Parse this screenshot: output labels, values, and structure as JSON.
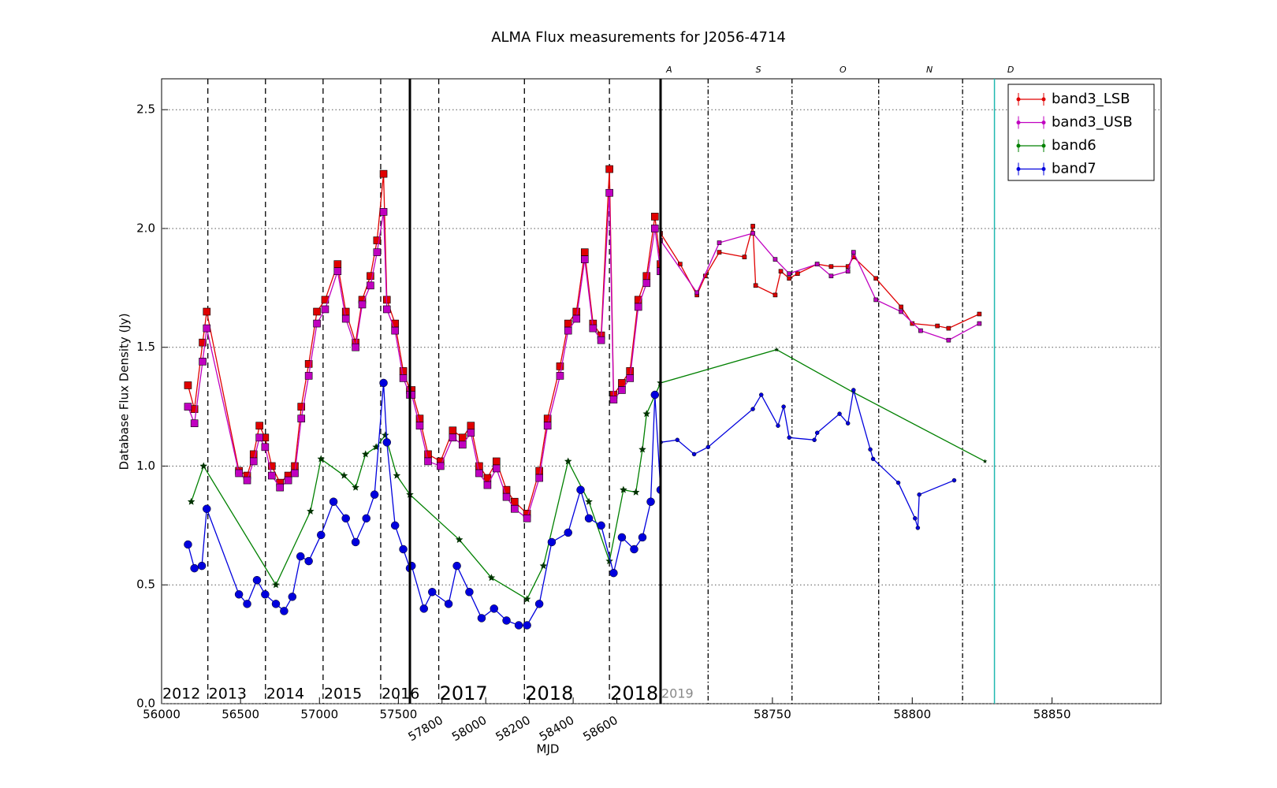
{
  "chart_data": [
    {
      "type": "line",
      "title": "ALMA Flux measurements for J2056-4714",
      "xlabel": "MJD",
      "ylabel": "Database Flux Density (Jy)",
      "xlim": [
        56000,
        57573
      ],
      "xticks": [
        56000,
        56500,
        57000,
        57500
      ],
      "ylim": [
        0,
        2.63
      ],
      "yticks": [
        {
          "value": 0,
          "label": "0.0"
        },
        0.5,
        {
          "value": 1,
          "label": "1.0"
        },
        1.5,
        {
          "value": 2,
          "label": "2.0"
        },
        2.5
      ],
      "grid": true,
      "vlines": [
        56293,
        56658,
        57023,
        57388
      ],
      "vline_style": "dashed",
      "annotations": [
        {
          "x": 56000,
          "text": "2012"
        },
        {
          "x": 56293,
          "text": "2013"
        },
        {
          "x": 56658,
          "text": "2014"
        },
        {
          "x": 57023,
          "text": "2015"
        },
        {
          "x": 57388,
          "text": "2016"
        }
      ],
      "series": [
        {
          "name": "band3_LSB",
          "color": "#e00000",
          "marker": "square",
          "x": [
            56167,
            56208,
            56260,
            56286,
            56490,
            56542,
            56583,
            56620,
            56656,
            56698,
            56750,
            56802,
            56844,
            56885,
            56932,
            56984,
            57036,
            57115,
            57167,
            57229,
            57271,
            57323,
            57365,
            57406,
            57427,
            57479,
            57531,
            57573
          ],
          "values": [
            1.34,
            1.24,
            1.52,
            1.65,
            0.98,
            0.96,
            1.05,
            1.17,
            1.12,
            1.0,
            0.93,
            0.96,
            1.0,
            1.25,
            1.43,
            1.65,
            1.7,
            1.85,
            1.65,
            1.52,
            1.7,
            1.8,
            1.95,
            2.23,
            1.7,
            1.6,
            1.4,
            1.32
          ]
        },
        {
          "name": "band3_USB",
          "color": "#c000c0",
          "marker": "square",
          "x": [
            56167,
            56208,
            56260,
            56286,
            56490,
            56542,
            56583,
            56620,
            56656,
            56698,
            56750,
            56802,
            56844,
            56885,
            56932,
            56984,
            57036,
            57115,
            57167,
            57229,
            57271,
            57323,
            57365,
            57406,
            57427,
            57479,
            57531,
            57573
          ],
          "values": [
            1.25,
            1.18,
            1.44,
            1.58,
            0.97,
            0.94,
            1.02,
            1.12,
            1.08,
            0.96,
            0.91,
            0.94,
            0.97,
            1.2,
            1.38,
            1.6,
            1.66,
            1.82,
            1.62,
            1.5,
            1.68,
            1.76,
            1.9,
            2.07,
            1.66,
            1.57,
            1.37,
            1.3
          ]
        },
        {
          "name": "band6",
          "color": "#008000",
          "marker": "star",
          "x": [
            56188,
            56266,
            56724,
            56943,
            57010,
            57156,
            57229,
            57292,
            57359,
            57417,
            57490,
            57573
          ],
          "values": [
            0.85,
            1.0,
            0.5,
            0.81,
            1.03,
            0.96,
            0.91,
            1.05,
            1.08,
            1.13,
            0.96,
            0.88
          ]
        },
        {
          "name": "band7",
          "color": "#0000dd",
          "marker": "circle",
          "x": [
            56167,
            56208,
            56255,
            56286,
            56490,
            56542,
            56604,
            56656,
            56724,
            56776,
            56828,
            56880,
            56932,
            57010,
            57089,
            57167,
            57229,
            57297,
            57349,
            57406,
            57427,
            57479,
            57531,
            57573
          ],
          "values": [
            0.67,
            0.57,
            0.58,
            0.82,
            0.46,
            0.42,
            0.52,
            0.46,
            0.42,
            0.39,
            0.45,
            0.62,
            0.6,
            0.71,
            0.85,
            0.78,
            0.68,
            0.78,
            0.88,
            1.35,
            1.1,
            0.75,
            0.65,
            0.57
          ]
        }
      ]
    },
    {
      "type": "line",
      "xlim": [
        57653,
        58800
      ],
      "xticks": [
        57800,
        58000,
        58200,
        58400,
        58600
      ],
      "vlines": [
        57785,
        58177,
        58566
      ],
      "vline_style": "dashed",
      "annotations": [
        {
          "x": 57785,
          "text": "2017"
        },
        {
          "x": 58177,
          "text": "2018"
        },
        {
          "x": 58566,
          "text": "2018"
        }
      ],
      "series": [
        {
          "name": "band3_LSB",
          "color": "#e00000",
          "marker": "square",
          "x": [
            57661,
            57698,
            57736,
            57793,
            57849,
            57894,
            57932,
            57970,
            58008,
            58049,
            58095,
            58132,
            58189,
            58245,
            58283,
            58340,
            58377,
            58415,
            58453,
            58491,
            58528,
            58566,
            58585,
            58623,
            58660,
            58698,
            58736,
            58774,
            58800
          ],
          "values": [
            1.32,
            1.2,
            1.05,
            1.02,
            1.15,
            1.12,
            1.17,
            1.0,
            0.95,
            1.02,
            0.9,
            0.85,
            0.8,
            0.98,
            1.2,
            1.42,
            1.6,
            1.65,
            1.9,
            1.6,
            1.55,
            2.25,
            1.3,
            1.35,
            1.4,
            1.7,
            1.8,
            2.05,
            1.85
          ]
        },
        {
          "name": "band3_USB",
          "color": "#c000c0",
          "marker": "square",
          "x": [
            57661,
            57698,
            57736,
            57793,
            57849,
            57894,
            57932,
            57970,
            58008,
            58049,
            58095,
            58132,
            58189,
            58245,
            58283,
            58340,
            58377,
            58415,
            58453,
            58491,
            58528,
            58566,
            58585,
            58623,
            58660,
            58698,
            58736,
            58774,
            58800
          ],
          "values": [
            1.3,
            1.17,
            1.02,
            1.0,
            1.12,
            1.09,
            1.14,
            0.97,
            0.92,
            0.99,
            0.87,
            0.82,
            0.78,
            0.95,
            1.17,
            1.38,
            1.57,
            1.62,
            1.87,
            1.58,
            1.53,
            2.15,
            1.28,
            1.32,
            1.37,
            1.67,
            1.77,
            2.0,
            1.82
          ]
        },
        {
          "name": "band6",
          "color": "#008000",
          "marker": "star",
          "x": [
            57653,
            57879,
            58026,
            58189,
            58264,
            58377,
            58472,
            58566,
            58630,
            58687,
            58717,
            58736,
            58800
          ],
          "values": [
            0.88,
            0.69,
            0.53,
            0.44,
            0.58,
            1.02,
            0.85,
            0.6,
            0.9,
            0.89,
            1.07,
            1.22,
            1.35
          ]
        },
        {
          "name": "band7",
          "color": "#0000dd",
          "marker": "circle",
          "x": [
            57661,
            57717,
            57755,
            57830,
            57868,
            57925,
            57981,
            58038,
            58095,
            58151,
            58189,
            58245,
            58302,
            58377,
            58434,
            58472,
            58528,
            58585,
            58623,
            58679,
            58717,
            58755,
            58774,
            58800
          ],
          "values": [
            0.58,
            0.4,
            0.47,
            0.42,
            0.58,
            0.47,
            0.36,
            0.4,
            0.35,
            0.33,
            0.33,
            0.42,
            0.68,
            0.72,
            0.9,
            0.78,
            0.75,
            0.55,
            0.7,
            0.65,
            0.7,
            0.85,
            1.3,
            0.9
          ]
        }
      ]
    },
    {
      "type": "line",
      "xlim": [
        58710,
        58889
      ],
      "xticks": [
        58750,
        58800,
        58850
      ],
      "vlines": [
        58727,
        58757,
        58788,
        58818
      ],
      "vline_style": "dashdot",
      "today_line": 58829.4,
      "annotations": [
        {
          "x": 58710,
          "text": "2019"
        }
      ],
      "months": [
        {
          "x": 58712,
          "text": "A"
        },
        {
          "x": 58744,
          "text": "S"
        },
        {
          "x": 58774,
          "text": "O"
        },
        {
          "x": 58805,
          "text": "N"
        },
        {
          "x": 58834,
          "text": "D"
        }
      ],
      "legend": "upper right",
      "series": [
        {
          "name": "band3_LSB",
          "color": "#e00000",
          "marker": "square",
          "x": [
            58710,
            58717,
            58723,
            58726,
            58731,
            58740,
            58743,
            58744,
            58751,
            58753,
            58756,
            58759,
            58766,
            58771,
            58777,
            58779,
            58787,
            58796,
            58800,
            58809,
            58813,
            58824
          ],
          "values": [
            1.98,
            1.85,
            1.72,
            1.8,
            1.9,
            1.88,
            2.01,
            1.76,
            1.72,
            1.82,
            1.79,
            1.81,
            1.85,
            1.84,
            1.84,
            1.88,
            1.79,
            1.67,
            1.6,
            1.59,
            1.58,
            1.64
          ]
        },
        {
          "name": "band3_USB",
          "color": "#c000c0",
          "marker": "square",
          "x": [
            58710,
            58723,
            58731,
            58743,
            58751,
            58756,
            58766,
            58771,
            58777,
            58779,
            58787,
            58796,
            58803,
            58813,
            58824
          ],
          "values": [
            1.95,
            1.73,
            1.94,
            1.98,
            1.87,
            1.81,
            1.85,
            1.8,
            1.82,
            1.9,
            1.7,
            1.65,
            1.57,
            1.53,
            1.6
          ]
        },
        {
          "name": "band6",
          "color": "#008000",
          "marker": "star",
          "x": [
            58710,
            58751.5,
            58779,
            58826
          ],
          "values": [
            1.35,
            1.49,
            1.31,
            1.02
          ]
        },
        {
          "name": "band7",
          "color": "#0000dd",
          "marker": "circle",
          "x": [
            58710,
            58716,
            58722,
            58727,
            58743,
            58746,
            58752,
            58754,
            58756,
            58765,
            58766,
            58774,
            58777,
            58779,
            58785,
            58786,
            58795,
            58801,
            58802,
            58802.5,
            58815
          ],
          "values": [
            1.1,
            1.11,
            1.05,
            1.08,
            1.24,
            1.3,
            1.17,
            1.25,
            1.12,
            1.11,
            1.14,
            1.22,
            1.18,
            1.32,
            1.07,
            1.03,
            0.93,
            0.78,
            0.74,
            0.88,
            0.94
          ]
        }
      ]
    }
  ]
}
